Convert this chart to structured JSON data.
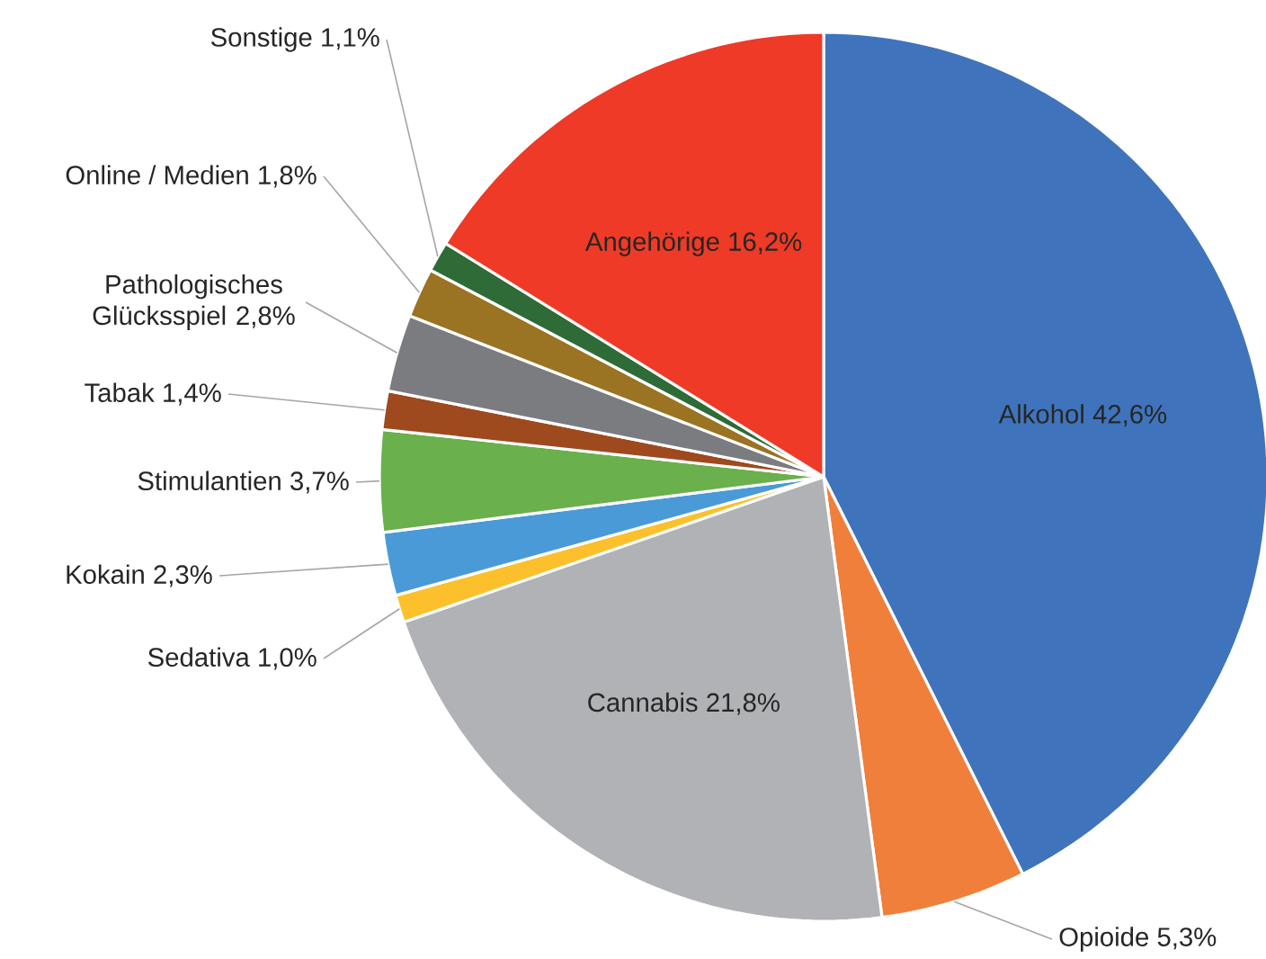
{
  "chart_data": {
    "type": "pie",
    "categories": [
      "Alkohol",
      "Opioide",
      "Cannabis",
      "Sedativa",
      "Kokain",
      "Stimulantien",
      "Tabak",
      "Pathologisches Glücksspiel",
      "Online / Medien",
      "Sonstige",
      "Angehörige"
    ],
    "values": [
      42.6,
      5.3,
      21.8,
      1.0,
      2.3,
      3.7,
      1.4,
      2.8,
      1.8,
      1.1,
      16.2
    ],
    "value_labels": [
      "42,6%",
      "5,3%",
      "21,8%",
      "1,0%",
      "2,3%",
      "3,7%",
      "1,4%",
      "2,8%",
      "1,8%",
      "1,1%",
      "16,2%"
    ],
    "colors": [
      "#3f74bc",
      "#ef7f3a",
      "#b1b2b5",
      "#fcc02c",
      "#4a9ad8",
      "#6ab04c",
      "#9e4a1e",
      "#7b7c80",
      "#9a7323",
      "#2e6b37",
      "#ee3a27"
    ]
  }
}
